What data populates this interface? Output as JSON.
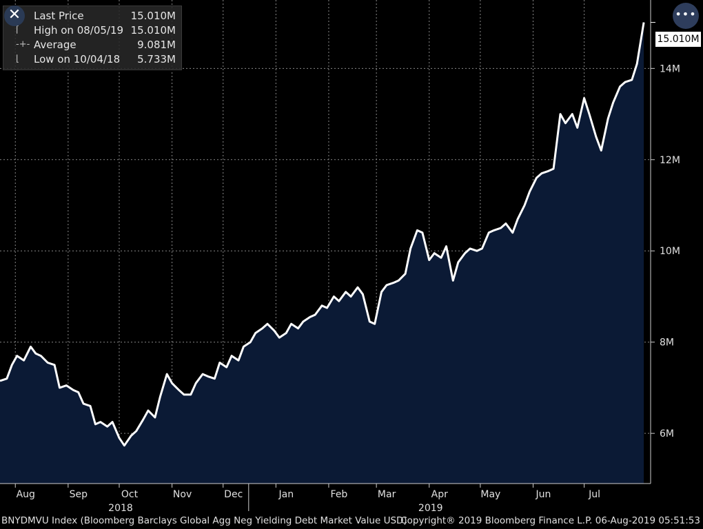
{
  "legend": {
    "rows": [
      {
        "label": "Last Price",
        "value": "15.010M",
        "symbol": ""
      },
      {
        "label": "High on 08/05/19",
        "value": "15.010M",
        "symbol": "⌈"
      },
      {
        "label": "Average",
        "value": "9.081M",
        "symbol": "-+-"
      },
      {
        "label": "Low on 10/04/18",
        "value": "5.733M",
        "symbol": "⌊"
      }
    ]
  },
  "last_price_label": "15.010M",
  "footer": {
    "description": "BNYDMVU Index (Bloomberg Barclays Global Agg Neg Yielding Debt Market Value USD)",
    "copyright": "Copyright® 2019 Bloomberg Finance L.P.  06-Aug-2019 05:51:53"
  },
  "colors": {
    "background": "#000000",
    "area_fill": "#0b1a35",
    "line": "#ffffff",
    "grid": "#8a8a8a"
  },
  "chart_data": {
    "type": "area",
    "title": "",
    "ylabel": "",
    "xlabel": "",
    "ylim": [
      4.9,
      15.5
    ],
    "yticks": [
      6,
      8,
      10,
      12,
      14
    ],
    "ytick_labels": [
      "6M",
      "8M",
      "10M",
      "12M",
      "14M"
    ],
    "grid": true,
    "xlim": [
      "2018-07-23",
      "2019-08-09"
    ],
    "xticks": [
      {
        "date": "2018-08-01",
        "label": "Aug"
      },
      {
        "date": "2018-09-01",
        "label": "Sep"
      },
      {
        "date": "2018-10-01",
        "label": "Oct"
      },
      {
        "date": "2018-11-01",
        "label": "Nov"
      },
      {
        "date": "2018-12-01",
        "label": "Dec"
      },
      {
        "date": "2019-01-01",
        "label": "Jan"
      },
      {
        "date": "2019-02-01",
        "label": "Feb"
      },
      {
        "date": "2019-03-01",
        "label": "Mar"
      },
      {
        "date": "2019-04-01",
        "label": "Apr"
      },
      {
        "date": "2019-05-01",
        "label": "May"
      },
      {
        "date": "2019-06-01",
        "label": "Jun"
      },
      {
        "date": "2019-07-01",
        "label": "Jul"
      }
    ],
    "year_labels": [
      {
        "date": "2018-10-01",
        "label": "2018"
      },
      {
        "date": "2019-04-01",
        "label": "2019"
      }
    ],
    "year_divider": "2018-12-16",
    "series": [
      {
        "unit": "M",
        "points": [
          [
            "2018-07-23",
            7.15
          ],
          [
            "2018-07-27",
            7.2
          ],
          [
            "2018-07-30",
            7.5
          ],
          [
            "2018-08-02",
            7.7
          ],
          [
            "2018-08-06",
            7.6
          ],
          [
            "2018-08-10",
            7.9
          ],
          [
            "2018-08-13",
            7.75
          ],
          [
            "2018-08-16",
            7.7
          ],
          [
            "2018-08-20",
            7.55
          ],
          [
            "2018-08-24",
            7.5
          ],
          [
            "2018-08-27",
            7.0
          ],
          [
            "2018-08-31",
            7.05
          ],
          [
            "2018-09-04",
            6.95
          ],
          [
            "2018-09-07",
            6.9
          ],
          [
            "2018-09-10",
            6.65
          ],
          [
            "2018-09-14",
            6.6
          ],
          [
            "2018-09-17",
            6.2
          ],
          [
            "2018-09-20",
            6.25
          ],
          [
            "2018-09-24",
            6.15
          ],
          [
            "2018-09-27",
            6.25
          ],
          [
            "2018-10-01",
            5.9
          ],
          [
            "2018-10-04",
            5.733
          ],
          [
            "2018-10-08",
            5.95
          ],
          [
            "2018-10-11",
            6.05
          ],
          [
            "2018-10-15",
            6.3
          ],
          [
            "2018-10-18",
            6.5
          ],
          [
            "2018-10-22",
            6.35
          ],
          [
            "2018-10-25",
            6.8
          ],
          [
            "2018-10-29",
            7.3
          ],
          [
            "2018-11-01",
            7.1
          ],
          [
            "2018-11-05",
            6.95
          ],
          [
            "2018-11-08",
            6.85
          ],
          [
            "2018-11-12",
            6.85
          ],
          [
            "2018-11-15",
            7.1
          ],
          [
            "2018-11-19",
            7.3
          ],
          [
            "2018-11-22",
            7.25
          ],
          [
            "2018-11-26",
            7.2
          ],
          [
            "2018-11-29",
            7.55
          ],
          [
            "2018-12-03",
            7.45
          ],
          [
            "2018-12-06",
            7.7
          ],
          [
            "2018-12-10",
            7.6
          ],
          [
            "2018-12-13",
            7.9
          ],
          [
            "2018-12-17",
            8.0
          ],
          [
            "2018-12-20",
            8.2
          ],
          [
            "2018-12-24",
            8.3
          ],
          [
            "2018-12-27",
            8.4
          ],
          [
            "2018-12-31",
            8.25
          ],
          [
            "2019-01-03",
            8.1
          ],
          [
            "2019-01-07",
            8.2
          ],
          [
            "2019-01-10",
            8.4
          ],
          [
            "2019-01-14",
            8.3
          ],
          [
            "2019-01-17",
            8.45
          ],
          [
            "2019-01-21",
            8.55
          ],
          [
            "2019-01-24",
            8.6
          ],
          [
            "2019-01-28",
            8.8
          ],
          [
            "2019-01-31",
            8.75
          ],
          [
            "2019-02-04",
            9.0
          ],
          [
            "2019-02-07",
            8.9
          ],
          [
            "2019-02-11",
            9.1
          ],
          [
            "2019-02-14",
            9.0
          ],
          [
            "2019-02-18",
            9.2
          ],
          [
            "2019-02-21",
            9.05
          ],
          [
            "2019-02-25",
            8.45
          ],
          [
            "2019-02-28",
            8.4
          ],
          [
            "2019-03-04",
            9.1
          ],
          [
            "2019-03-07",
            9.25
          ],
          [
            "2019-03-11",
            9.3
          ],
          [
            "2019-03-14",
            9.35
          ],
          [
            "2019-03-18",
            9.5
          ],
          [
            "2019-03-21",
            10.05
          ],
          [
            "2019-03-25",
            10.45
          ],
          [
            "2019-03-28",
            10.4
          ],
          [
            "2019-04-01",
            9.8
          ],
          [
            "2019-04-04",
            9.95
          ],
          [
            "2019-04-08",
            9.85
          ],
          [
            "2019-04-11",
            10.1
          ],
          [
            "2019-04-15",
            9.35
          ],
          [
            "2019-04-18",
            9.75
          ],
          [
            "2019-04-22",
            9.95
          ],
          [
            "2019-04-25",
            10.05
          ],
          [
            "2019-04-29",
            10.0
          ],
          [
            "2019-05-02",
            10.05
          ],
          [
            "2019-05-06",
            10.4
          ],
          [
            "2019-05-09",
            10.45
          ],
          [
            "2019-05-13",
            10.5
          ],
          [
            "2019-05-16",
            10.6
          ],
          [
            "2019-05-20",
            10.4
          ],
          [
            "2019-05-23",
            10.7
          ],
          [
            "2019-05-27",
            11.0
          ],
          [
            "2019-05-30",
            11.3
          ],
          [
            "2019-06-03",
            11.6
          ],
          [
            "2019-06-06",
            11.7
          ],
          [
            "2019-06-10",
            11.75
          ],
          [
            "2019-06-13",
            11.8
          ],
          [
            "2019-06-17",
            13.0
          ],
          [
            "2019-06-20",
            12.8
          ],
          [
            "2019-06-24",
            13.0
          ],
          [
            "2019-06-27",
            12.7
          ],
          [
            "2019-07-01",
            13.35
          ],
          [
            "2019-07-04",
            13.0
          ],
          [
            "2019-07-08",
            12.5
          ],
          [
            "2019-07-11",
            12.2
          ],
          [
            "2019-07-15",
            12.9
          ],
          [
            "2019-07-18",
            13.25
          ],
          [
            "2019-07-22",
            13.6
          ],
          [
            "2019-07-25",
            13.7
          ],
          [
            "2019-07-29",
            13.75
          ],
          [
            "2019-08-01",
            14.1
          ],
          [
            "2019-08-05",
            15.01
          ]
        ]
      }
    ]
  }
}
